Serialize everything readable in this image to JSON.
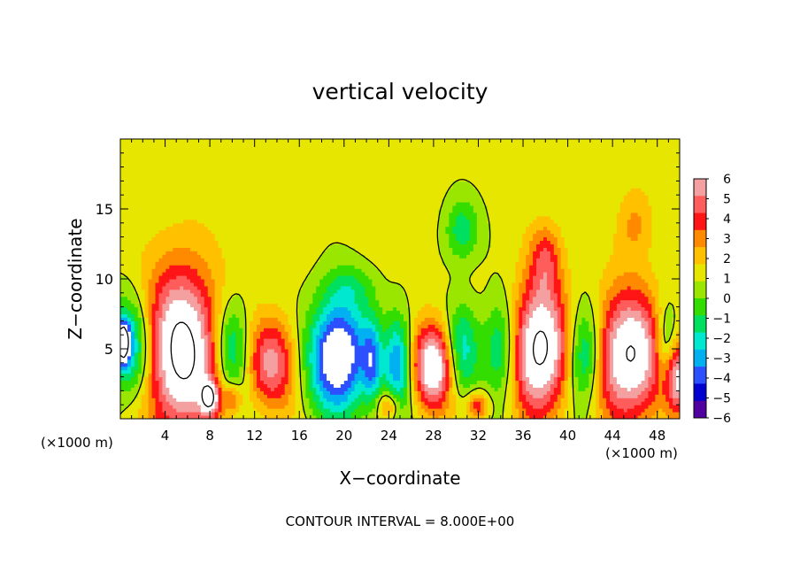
{
  "chart_data": {
    "type": "heatmap",
    "title": "vertical velocity",
    "xlabel": "X−coordinate",
    "ylabel": "Z−coordinate",
    "x_unit_left": "(×1000 m)",
    "x_unit_right": "(×1000 m)",
    "footer": "CONTOUR INTERVAL = 8.000E+00",
    "xlim": [
      0,
      50
    ],
    "ylim": [
      0,
      20
    ],
    "x_ticks": [
      "4",
      "8",
      "12",
      "16",
      "20",
      "24",
      "28",
      "32",
      "36",
      "40",
      "44",
      "48"
    ],
    "x_tick_values": [
      4,
      8,
      12,
      16,
      20,
      24,
      28,
      32,
      36,
      40,
      44,
      48
    ],
    "y_ticks": [
      "5",
      "10",
      "15"
    ],
    "y_tick_values": [
      5,
      10,
      15
    ],
    "colorbar_labels": [
      "6",
      "5",
      "4",
      "3",
      "2",
      "1",
      "0",
      "−1",
      "−2",
      "−3",
      "−4",
      "−5",
      "−6"
    ],
    "colorbar_colors": [
      "#f4a0a0",
      "#ff5c5c",
      "#ff1515",
      "#ff8a00",
      "#ffc000",
      "#e6e600",
      "#9ae600",
      "#33dd00",
      "#00e060",
      "#00e8d0",
      "#00b0f0",
      "#2c50ff",
      "#0000d0",
      "#5000a0"
    ],
    "colors": {
      "background": "#ffffff",
      "field": "#33dd00"
    },
    "features": [
      {
        "type": "updraft",
        "x": 5.5,
        "z": 4.8,
        "rx": 3.2,
        "rz": 6.0,
        "w": 8.5
      },
      {
        "type": "updraft",
        "x": 13.5,
        "z": 4.0,
        "rx": 2.2,
        "rz": 3.2,
        "w": 5.0
      },
      {
        "type": "updraft",
        "x": 28.0,
        "z": 3.8,
        "rx": 1.8,
        "rz": 3.0,
        "w": 7.5
      },
      {
        "type": "updraft",
        "x": 37.5,
        "z": 5.0,
        "rx": 2.5,
        "rz": 4.5,
        "w": 8.5
      },
      {
        "type": "updraft",
        "x": 45.5,
        "z": 4.5,
        "rx": 3.0,
        "rz": 4.5,
        "w": 8.0
      },
      {
        "type": "updraft",
        "x": 49.8,
        "z": 3.0,
        "rx": 1.2,
        "rz": 2.5,
        "w": 6.0
      },
      {
        "type": "updraft",
        "x": 38.0,
        "z": 11.5,
        "rx": 1.4,
        "rz": 2.5,
        "w": 3.2
      },
      {
        "type": "updraft",
        "x": 46.0,
        "z": 14.0,
        "rx": 1.5,
        "rz": 2.5,
        "w": 2.0
      },
      {
        "type": "updraft",
        "x": 32.0,
        "z": 1.0,
        "rx": 1.0,
        "rz": 1.0,
        "w": 4.0
      },
      {
        "type": "updraft",
        "x": 8.0,
        "z": 1.5,
        "rx": 0.8,
        "rz": 1.2,
        "w": 6.0
      },
      {
        "type": "updraft",
        "x": 10.0,
        "z": 1.5,
        "rx": 0.8,
        "rz": 1.0,
        "w": 3.0
      },
      {
        "type": "updraft",
        "x": 24.0,
        "z": 1.0,
        "rx": 1.0,
        "rz": 1.0,
        "w": 3.0
      },
      {
        "type": "downdraft",
        "x": 1.0,
        "z": 5.0,
        "rx": 1.8,
        "rz": 3.5,
        "w": -5.0
      },
      {
        "type": "downdraft",
        "x": 0.2,
        "z": 5.5,
        "rx": 0.6,
        "rz": 1.5,
        "w": -9.0
      },
      {
        "type": "downdraft",
        "x": 10.0,
        "z": 5.0,
        "rx": 1.5,
        "rz": 3.5,
        "w": -4.0
      },
      {
        "type": "downdraft",
        "x": 19.5,
        "z": 4.5,
        "rx": 2.6,
        "rz": 4.0,
        "w": -8.5
      },
      {
        "type": "downdraft",
        "x": 24.8,
        "z": 4.0,
        "rx": 1.2,
        "rz": 3.5,
        "w": -5.0
      },
      {
        "type": "downdraft",
        "x": 22.5,
        "z": 4.0,
        "rx": 0.8,
        "rz": 3.0,
        "w": -4.0
      },
      {
        "type": "downdraft",
        "x": 30.5,
        "z": 5.0,
        "rx": 1.5,
        "rz": 3.2,
        "w": -4.0
      },
      {
        "type": "downdraft",
        "x": 34.0,
        "z": 5.0,
        "rx": 1.5,
        "rz": 3.5,
        "w": -4.0
      },
      {
        "type": "downdraft",
        "x": 41.5,
        "z": 4.5,
        "rx": 1.5,
        "rz": 3.5,
        "w": -5.0
      },
      {
        "type": "downdraft",
        "x": 48.8,
        "z": 5.0,
        "rx": 1.0,
        "rz": 3.0,
        "w": -4.0
      },
      {
        "type": "downdraft",
        "x": 30.5,
        "z": 13.5,
        "rx": 1.5,
        "rz": 2.2,
        "w": -3.0
      },
      {
        "type": "downdraft",
        "x": 20.5,
        "z": 9.5,
        "rx": 2.5,
        "rz": 1.5,
        "w": -1.5
      }
    ]
  }
}
